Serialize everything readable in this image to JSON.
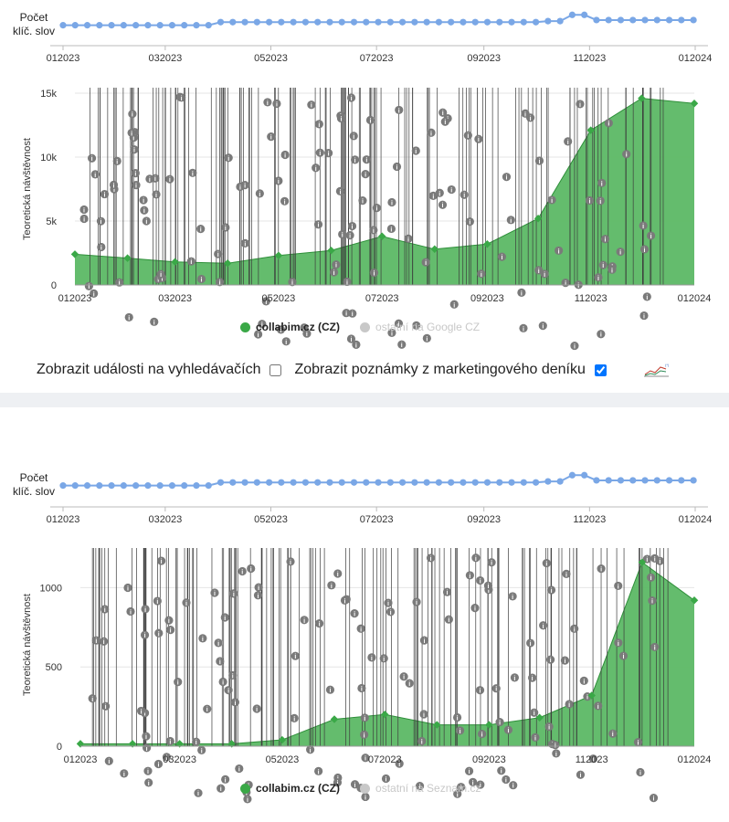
{
  "colors": {
    "area": "#4cad57",
    "area_fill": "#5cb865",
    "keyword_line": "#7aa7e6",
    "event": "#7a7a7a",
    "grid": "#e6e6e6"
  },
  "x_ticks": [
    "012023",
    "032023",
    "052023",
    "072023",
    "092023",
    "112023",
    "012024"
  ],
  "keyword_panel": {
    "label_line1": "Počet",
    "label_line2": "klíč. slov"
  },
  "controls": {
    "search_events_label": "Zobrazit události na vyhledávačích",
    "search_events_checked": false,
    "marketing_notes_label": "Zobrazit poznámky z marketingového deníku",
    "marketing_notes_checked": true
  },
  "chart_data": [
    {
      "type": "line",
      "id": "keywords-google",
      "ylabel": "Počet klíč. slov",
      "x": [
        "2023-01-01",
        "2023-01-08",
        "2023-01-15",
        "2023-01-22",
        "2023-01-29",
        "2023-02-05",
        "2023-02-12",
        "2023-02-19",
        "2023-02-26",
        "2023-03-05",
        "2023-03-12",
        "2023-03-19",
        "2023-03-26",
        "2023-04-02",
        "2023-04-09",
        "2023-04-16",
        "2023-04-23",
        "2023-04-30",
        "2023-05-07",
        "2023-05-14",
        "2023-05-21",
        "2023-05-28",
        "2023-06-04",
        "2023-06-11",
        "2023-06-18",
        "2023-06-25",
        "2023-07-02",
        "2023-07-09",
        "2023-07-16",
        "2023-07-23",
        "2023-07-30",
        "2023-08-06",
        "2023-08-13",
        "2023-08-20",
        "2023-08-27",
        "2023-09-03",
        "2023-09-10",
        "2023-09-17",
        "2023-09-24",
        "2023-10-01",
        "2023-10-08",
        "2023-10-15",
        "2023-10-22",
        "2023-10-29",
        "2023-11-05",
        "2023-11-12",
        "2023-11-19",
        "2023-11-26",
        "2023-12-03",
        "2023-12-10",
        "2023-12-17",
        "2023-12-24",
        "2023-12-31"
      ],
      "values": [
        10,
        10,
        10,
        10,
        10,
        10,
        10,
        10,
        10,
        10,
        10,
        10,
        10,
        13,
        13,
        13,
        13,
        13,
        13,
        13,
        13,
        13,
        13,
        13,
        13,
        13,
        13,
        13,
        13,
        13,
        13,
        13,
        13,
        13,
        13,
        13,
        13,
        13,
        13,
        13,
        14,
        14,
        20,
        20,
        15,
        15,
        15,
        15,
        15,
        15,
        15,
        15,
        15
      ]
    },
    {
      "type": "area",
      "id": "traffic-google",
      "ylabel": "Teoretická návštěvnost",
      "yticks": [
        "0",
        "5k",
        "10k",
        "15k"
      ],
      "ylim": [
        0,
        15000
      ],
      "x": [
        "2023-01-01",
        "2023-02-01",
        "2023-03-01",
        "2023-04-01",
        "2023-05-01",
        "2023-06-01",
        "2023-07-01",
        "2023-08-01",
        "2023-09-01",
        "2023-10-01",
        "2023-11-01",
        "2023-12-01",
        "2024-01-01"
      ],
      "series": [
        {
          "name": "collabim.cz (CZ)",
          "values": [
            2400,
            2100,
            1800,
            1700,
            2300,
            2700,
            3800,
            2800,
            3200,
            5200,
            12100,
            14600,
            14200
          ]
        }
      ],
      "legend": [
        {
          "label": "collabim.cz (CZ)",
          "color": "#3aa847"
        },
        {
          "label": "ostatní na Google CZ",
          "color": "#c8c8c8"
        }
      ]
    },
    {
      "type": "line",
      "id": "keywords-seznam",
      "ylabel": "Počet klíč. slov",
      "x": [
        "2023-01-01",
        "2023-01-08",
        "2023-01-15",
        "2023-01-22",
        "2023-01-29",
        "2023-02-05",
        "2023-02-12",
        "2023-02-19",
        "2023-02-26",
        "2023-03-05",
        "2023-03-12",
        "2023-03-19",
        "2023-03-26",
        "2023-04-02",
        "2023-04-09",
        "2023-04-16",
        "2023-04-23",
        "2023-04-30",
        "2023-05-07",
        "2023-05-14",
        "2023-05-21",
        "2023-05-28",
        "2023-06-04",
        "2023-06-11",
        "2023-06-18",
        "2023-06-25",
        "2023-07-02",
        "2023-07-09",
        "2023-07-16",
        "2023-07-23",
        "2023-07-30",
        "2023-08-06",
        "2023-08-13",
        "2023-08-20",
        "2023-08-27",
        "2023-09-03",
        "2023-09-10",
        "2023-09-17",
        "2023-09-24",
        "2023-10-01",
        "2023-10-08",
        "2023-10-15",
        "2023-10-22",
        "2023-10-29",
        "2023-11-05",
        "2023-11-12",
        "2023-11-19",
        "2023-11-26",
        "2023-12-03",
        "2023-12-10",
        "2023-12-17",
        "2023-12-24",
        "2023-12-31"
      ],
      "values": [
        10,
        10,
        10,
        10,
        10,
        10,
        10,
        10,
        10,
        10,
        10,
        10,
        10,
        13,
        13,
        13,
        13,
        13,
        13,
        13,
        13,
        13,
        13,
        13,
        13,
        13,
        13,
        13,
        13,
        13,
        13,
        13,
        13,
        13,
        13,
        13,
        13,
        13,
        13,
        13,
        14,
        14,
        20,
        20,
        15,
        15,
        15,
        15,
        15,
        15,
        15,
        15,
        15
      ]
    },
    {
      "type": "area",
      "id": "traffic-seznam",
      "ylabel": "Teoretická návštěvnost",
      "yticks": [
        "0",
        "500",
        "1000"
      ],
      "ylim": [
        0,
        1250
      ],
      "x": [
        "2023-01-01",
        "2023-02-01",
        "2023-03-01",
        "2023-04-01",
        "2023-05-01",
        "2023-06-01",
        "2023-07-01",
        "2023-08-01",
        "2023-09-01",
        "2023-10-01",
        "2023-11-01",
        "2023-12-01",
        "2024-01-01"
      ],
      "series": [
        {
          "name": "collabim.cz (CZ)",
          "values": [
            15,
            15,
            15,
            15,
            40,
            170,
            200,
            135,
            135,
            180,
            320,
            1160,
            920
          ]
        }
      ],
      "legend": [
        {
          "label": "collabim.cz (CZ)",
          "color": "#3aa847"
        },
        {
          "label": "ostatní na Seznam.cz",
          "color": "#c8c8c8"
        }
      ]
    }
  ]
}
